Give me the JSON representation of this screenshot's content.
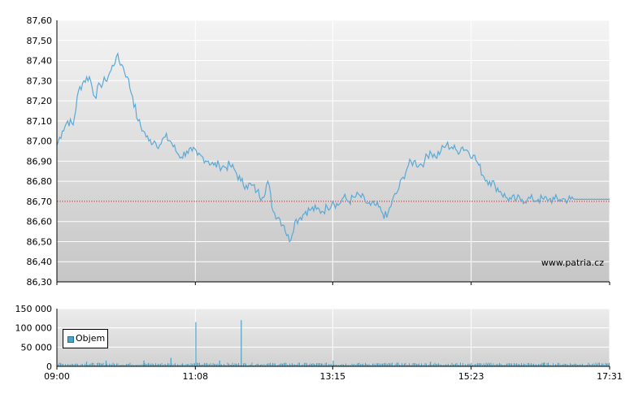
{
  "chart_data": [
    {
      "type": "line",
      "ylim": [
        86.3,
        87.6
      ],
      "y_ticks": [
        "86,30",
        "86,40",
        "86,50",
        "86,60",
        "86,70",
        "86,80",
        "86,90",
        "87,00",
        "87,10",
        "87,20",
        "87,30",
        "87,40",
        "87,50",
        "87,60"
      ],
      "reference_line": 86.7,
      "watermark": "www.patria.cz",
      "x_ticks": [
        "09:00",
        "11:08",
        "13:15",
        "15:23",
        "17:31"
      ],
      "series": [
        {
          "x": [
            "09:00",
            "09:05",
            "09:10",
            "09:15",
            "09:20",
            "09:25",
            "09:30",
            "09:35",
            "09:40",
            "09:45",
            "09:50",
            "09:55",
            "10:00",
            "10:05",
            "10:10",
            "10:15",
            "10:20",
            "10:25",
            "10:30",
            "10:35",
            "10:40",
            "10:45",
            "10:50",
            "10:55",
            "11:00",
            "11:05",
            "11:10",
            "11:15",
            "11:20",
            "11:25",
            "11:30",
            "11:35",
            "11:40",
            "11:45",
            "11:50",
            "11:55",
            "12:00",
            "12:05",
            "12:10",
            "12:15",
            "12:20",
            "12:25",
            "12:30",
            "12:35",
            "12:40",
            "12:45",
            "12:50",
            "12:55",
            "13:00",
            "13:05",
            "13:10",
            "13:15",
            "13:20",
            "13:25",
            "13:30",
            "13:35",
            "13:40",
            "13:45",
            "13:50",
            "13:55",
            "14:00",
            "14:05",
            "14:10",
            "14:15",
            "14:20",
            "14:25",
            "14:30",
            "14:35",
            "14:40",
            "14:45",
            "14:50",
            "14:55",
            "15:00",
            "15:05",
            "15:10",
            "15:15",
            "15:20",
            "15:25",
            "15:30",
            "15:35",
            "15:40",
            "15:45",
            "15:50",
            "15:55",
            "16:00",
            "16:05",
            "16:10",
            "16:15",
            "16:20",
            "16:25",
            "16:30",
            "16:35",
            "16:40",
            "16:45",
            "16:50",
            "16:55",
            "17:00",
            "17:05",
            "17:10",
            "17:15",
            "17:20",
            "17:25",
            "17:31"
          ],
          "values": [
            86.98,
            87.05,
            87.1,
            87.08,
            87.25,
            87.3,
            87.32,
            87.22,
            87.28,
            87.3,
            87.35,
            87.42,
            87.38,
            87.32,
            87.22,
            87.1,
            87.05,
            87.0,
            87.0,
            86.98,
            87.02,
            87.0,
            86.95,
            86.92,
            86.95,
            86.95,
            86.93,
            86.92,
            86.9,
            86.88,
            86.88,
            86.87,
            86.88,
            86.85,
            86.8,
            86.78,
            86.78,
            86.75,
            86.72,
            86.8,
            86.65,
            86.62,
            86.58,
            86.5,
            86.6,
            86.62,
            86.65,
            86.66,
            86.66,
            86.65,
            86.67,
            86.7,
            86.68,
            86.72,
            86.7,
            86.72,
            86.73,
            86.7,
            86.68,
            86.68,
            86.65,
            86.62,
            86.7,
            86.75,
            86.82,
            86.88,
            86.9,
            86.88,
            86.9,
            86.95,
            86.92,
            86.95,
            86.98,
            86.97,
            86.95,
            86.97,
            86.95,
            86.93,
            86.88,
            86.82,
            86.8,
            86.78,
            86.75,
            86.72,
            86.71,
            86.71,
            86.71,
            86.71,
            86.71,
            86.71,
            86.71,
            86.71,
            86.71,
            86.71,
            86.71,
            86.71,
            86.71,
            86.71,
            86.71,
            86.71,
            86.71,
            86.71,
            86.71
          ]
        }
      ]
    },
    {
      "type": "bar",
      "ylim": [
        0,
        150000
      ],
      "y_ticks": [
        "0",
        "50 000",
        "100 000",
        "150 000"
      ],
      "x_ticks": [
        "09:00",
        "11:08",
        "13:15",
        "15:23",
        "17:31"
      ],
      "series": [
        {
          "name": "Objem",
          "spikes": [
            {
              "x": "09:27",
              "value": 12000
            },
            {
              "x": "09:45",
              "value": 15000
            },
            {
              "x": "10:20",
              "value": 15000
            },
            {
              "x": "10:45",
              "value": 22000
            },
            {
              "x": "11:08",
              "value": 115000
            },
            {
              "x": "11:30",
              "value": 15000
            },
            {
              "x": "11:50",
              "value": 120000
            },
            {
              "x": "13:15",
              "value": 15000
            },
            {
              "x": "14:45",
              "value": 12000
            },
            {
              "x": "16:30",
              "value": 10000
            }
          ],
          "baseline": 8000
        }
      ]
    }
  ],
  "legend": {
    "label": "Objem",
    "color": "#4aa3c8"
  },
  "colors": {
    "line": "#5aa9d6",
    "reference": "#e04040",
    "volume": "#4aa3c8",
    "panel_top": "#f4f4f4",
    "panel_bottom": "#c8c8c8"
  }
}
